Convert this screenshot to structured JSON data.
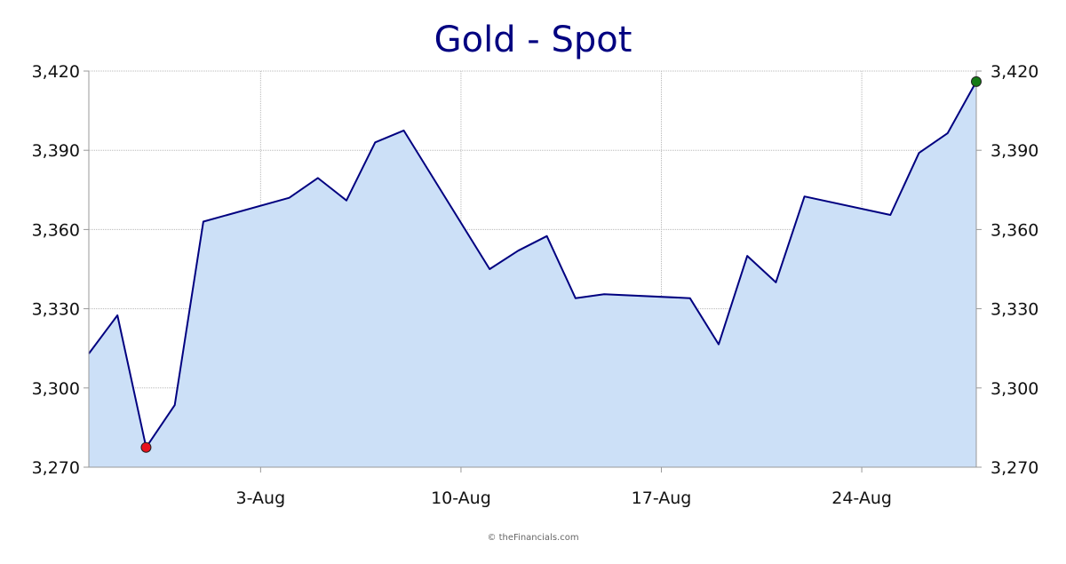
{
  "credit": "© theFinancials.com",
  "colors": {
    "title": "#000080",
    "line": "#000080",
    "fill": "#cce0f7",
    "grid": "#b8b8b8",
    "axis": "#999999",
    "low_marker": "#e8121c",
    "high_marker": "#157a15"
  },
  "chart_data": {
    "type": "area",
    "title": "Gold - Spot",
    "xlabel": "",
    "ylabel": "",
    "ylim": [
      3270,
      3420
    ],
    "yticks": [
      3270,
      3300,
      3330,
      3360,
      3390,
      3420
    ],
    "ytick_labels": [
      "3,270",
      "3,300",
      "3,330",
      "3,360",
      "3,390",
      "3,420"
    ],
    "y_axis_both_sides": true,
    "grid": true,
    "x_range": [
      "2025-07-28",
      "2025-08-28"
    ],
    "xticks": [
      "2025-08-03",
      "2025-08-10",
      "2025-08-17",
      "2025-08-24"
    ],
    "xtick_labels": [
      "3-Aug",
      "10-Aug",
      "17-Aug",
      "24-Aug"
    ],
    "series": [
      {
        "points": [
          {
            "x": "2025-07-28",
            "y": 3313
          },
          {
            "x": "2025-07-29",
            "y": 3327.5
          },
          {
            "x": "2025-07-30",
            "y": 3277.5
          },
          {
            "x": "2025-07-31",
            "y": 3293.5
          },
          {
            "x": "2025-08-01",
            "y": 3363
          },
          {
            "x": "2025-08-04",
            "y": 3372
          },
          {
            "x": "2025-08-05",
            "y": 3379.5
          },
          {
            "x": "2025-08-06",
            "y": 3371
          },
          {
            "x": "2025-08-07",
            "y": 3393
          },
          {
            "x": "2025-08-08",
            "y": 3397.5
          },
          {
            "x": "2025-08-11",
            "y": 3345
          },
          {
            "x": "2025-08-12",
            "y": 3352
          },
          {
            "x": "2025-08-13",
            "y": 3357.5
          },
          {
            "x": "2025-08-14",
            "y": 3334
          },
          {
            "x": "2025-08-15",
            "y": 3335.5
          },
          {
            "x": "2025-08-18",
            "y": 3334
          },
          {
            "x": "2025-08-19",
            "y": 3316.5
          },
          {
            "x": "2025-08-20",
            "y": 3350
          },
          {
            "x": "2025-08-21",
            "y": 3340
          },
          {
            "x": "2025-08-22",
            "y": 3372.5
          },
          {
            "x": "2025-08-25",
            "y": 3365.5
          },
          {
            "x": "2025-08-26",
            "y": 3389
          },
          {
            "x": "2025-08-27",
            "y": 3396.5
          },
          {
            "x": "2025-08-28",
            "y": 3416
          }
        ]
      }
    ],
    "markers": [
      {
        "label": "low",
        "x": "2025-07-30",
        "y": 3277.5,
        "color": "#e8121c"
      },
      {
        "label": "high",
        "x": "2025-08-28",
        "y": 3416,
        "color": "#157a15"
      }
    ]
  }
}
